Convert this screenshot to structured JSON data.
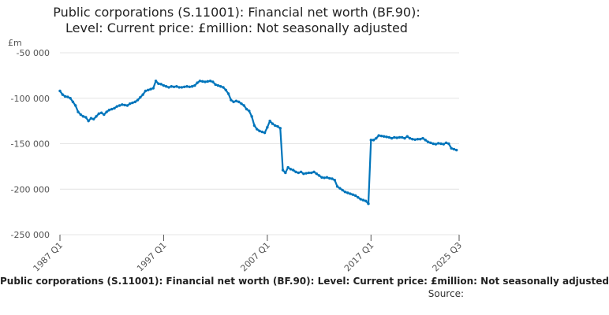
{
  "chart_data": {
    "type": "line",
    "title": "Public corporations (S.11001): Financial net worth (BF.90): Level: Current price: £million: Not seasonally adjusted",
    "title_lines": [
      "Public corporations (S.11001): Financial net worth (BF.90):",
      "Level: Current price: £million: Not seasonally adjusted"
    ],
    "ylabel": "£m",
    "xlabel": "",
    "ylim": [
      -250000,
      -50000
    ],
    "yticks": [
      -50000,
      -100000,
      -150000,
      -200000,
      -250000
    ],
    "ytick_labels": [
      "-50 000",
      "-100 000",
      "-150 000",
      "-200 000",
      "-250 000"
    ],
    "xlim": [
      1987.0,
      2025.5
    ],
    "xticks": [
      1987.0,
      1997.0,
      2007.0,
      2017.0,
      2025.5
    ],
    "xtick_labels": [
      "1987 Q1",
      "1997 Q1",
      "2007 Q1",
      "2017 Q1",
      "2025 Q3"
    ],
    "grid": true,
    "legend": "none",
    "color": "#0075bb",
    "series": [
      {
        "name": "Financial net worth (BF.90)",
        "x_start": 1987.0,
        "x_step": 0.25,
        "values": [
          -92000,
          -96000,
          -98000,
          -98500,
          -100000,
          -104000,
          -108000,
          -115000,
          -118000,
          -120000,
          -121000,
          -125000,
          -122000,
          -123000,
          -120000,
          -117000,
          -116000,
          -118000,
          -115000,
          -113000,
          -112000,
          -111000,
          -109000,
          -108000,
          -107000,
          -107500,
          -108000,
          -106000,
          -105000,
          -104000,
          -102000,
          -99000,
          -96000,
          -92000,
          -91000,
          -90000,
          -89000,
          -81000,
          -84000,
          -84500,
          -86000,
          -87000,
          -88000,
          -87000,
          -87500,
          -87000,
          -88000,
          -88000,
          -87500,
          -87000,
          -87500,
          -87000,
          -86000,
          -83000,
          -81000,
          -81500,
          -82000,
          -81500,
          -81000,
          -82000,
          -85000,
          -86000,
          -87000,
          -88000,
          -91000,
          -95000,
          -102000,
          -104000,
          -103000,
          -104000,
          -106000,
          -108000,
          -112000,
          -114000,
          -120000,
          -130000,
          -134000,
          -136000,
          -137000,
          -138000,
          -132000,
          -125000,
          -128000,
          -130000,
          -131000,
          -133000,
          -179000,
          -182000,
          -176000,
          -178000,
          -179000,
          -181000,
          -182000,
          -181000,
          -183000,
          -182500,
          -182000,
          -182000,
          -181000,
          -183000,
          -185000,
          -187000,
          -187500,
          -187000,
          -188000,
          -188500,
          -190000,
          -197000,
          -199000,
          -201000,
          -203000,
          -204000,
          -205000,
          -206000,
          -207000,
          -209000,
          -211000,
          -212000,
          -213000,
          -216000,
          -146000,
          -146000,
          -144000,
          -141000,
          -141500,
          -142000,
          -142500,
          -143000,
          -144000,
          -143000,
          -143500,
          -143000,
          -143000,
          -144000,
          -142000,
          -144000,
          -145000,
          -145500,
          -145000,
          -145000,
          -144000,
          -146000,
          -148000,
          -149000,
          -150000,
          -150500,
          -149500,
          -150000,
          -150500,
          -149000,
          -150000,
          -155000,
          -156000,
          -157000
        ]
      }
    ]
  },
  "footer": {
    "caption": "Public corporations (S.11001): Financial net worth (BF.90): Level: Current price: £million: Not seasonally adjusted",
    "source": "Source:"
  }
}
